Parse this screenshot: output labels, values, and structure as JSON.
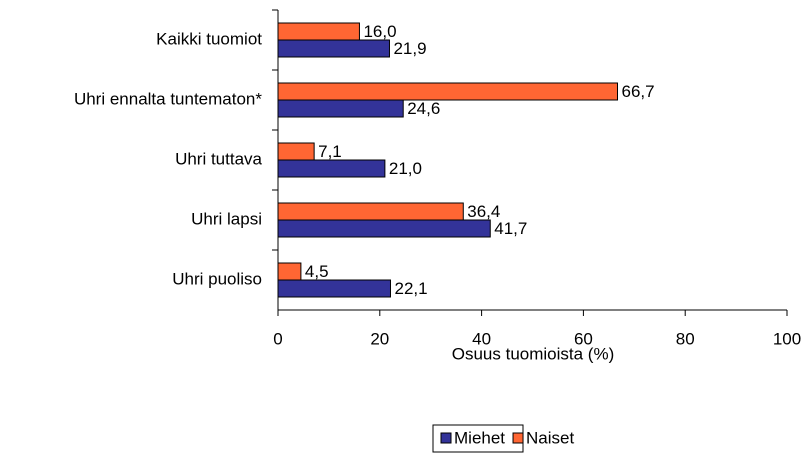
{
  "chart_data": {
    "type": "hbar",
    "categories": [
      "Kaikki tuomiot",
      "Uhri ennalta tuntematon*",
      "Uhri tuttava",
      "Uhri lapsi",
      "Uhri puoliso"
    ],
    "series": [
      {
        "name": "Miehet",
        "color": "#333399",
        "values": [
          21.9,
          24.6,
          21.0,
          41.7,
          22.1
        ],
        "value_labels": [
          "21,9",
          "24,6",
          "21,0",
          "41,7",
          "22,1"
        ]
      },
      {
        "name": "Naiset",
        "color": "#ff6633",
        "values": [
          16.0,
          66.7,
          7.1,
          36.4,
          4.5
        ],
        "value_labels": [
          "16,0",
          "66,7",
          "7,1",
          "36,4",
          "4,5"
        ]
      }
    ],
    "xlabel": "Osuus tuomioista (%)",
    "xlim": [
      0,
      100
    ],
    "xticks": [
      0,
      20,
      40,
      60,
      80,
      100
    ]
  }
}
